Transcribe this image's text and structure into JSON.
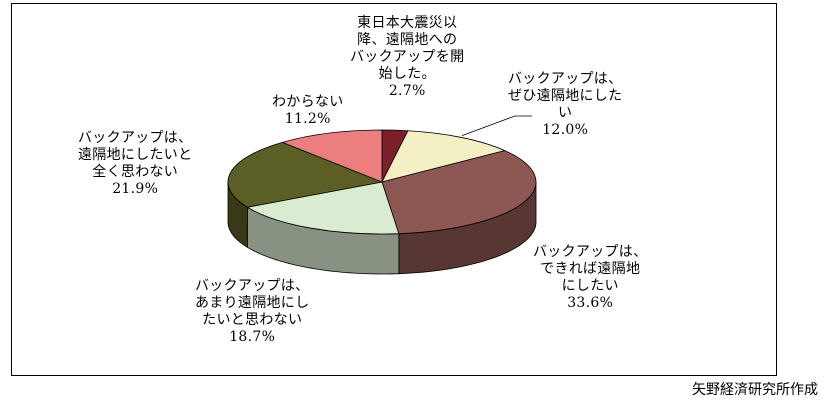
{
  "chart_data": {
    "type": "pie",
    "three_d": true,
    "start_angle_deg": 90,
    "direction": "clockwise",
    "slices": [
      {
        "name": "東日本大震災以降、遠隔地へのバックアップを開始した。",
        "lines": [
          "東日本大震災以",
          "降、遠隔地への",
          "バックアップを開",
          "始した。"
        ],
        "value": 2.7,
        "value_label": "2.7%",
        "color": "#7b1f2a"
      },
      {
        "name": "バックアップは、ぜひ遠隔地にしたい",
        "lines": [
          "バックアップは、",
          "ぜひ遠隔地にした",
          "い"
        ],
        "value": 12.0,
        "value_label": "12.0%",
        "color": "#f3f0c4"
      },
      {
        "name": "バックアップは、できれば遠隔地にしたい",
        "lines": [
          "バックアップは、",
          "できれば遠隔地",
          "にしたい"
        ],
        "value": 33.6,
        "value_label": "33.6%",
        "color": "#8d5753"
      },
      {
        "name": "バックアップは、あまり遠隔地にしたいと思わない",
        "lines": [
          "バックアップは、",
          "あまり遠隔地にし",
          "たいと思わない"
        ],
        "value": 18.7,
        "value_label": "18.7%",
        "color": "#d9ecd2"
      },
      {
        "name": "バックアップは、遠隔地にしたいと全く思わない",
        "lines": [
          "バックアップは、",
          "遠隔地にしたいと",
          "全く思わない"
        ],
        "value": 21.9,
        "value_label": "21.9%",
        "color": "#5b5e25"
      },
      {
        "name": "わからない",
        "lines": [
          "わからない"
        ],
        "value": 11.2,
        "value_label": "11.2%",
        "color": "#ec7e7e"
      }
    ]
  },
  "source": "矢野経済研究所作成"
}
